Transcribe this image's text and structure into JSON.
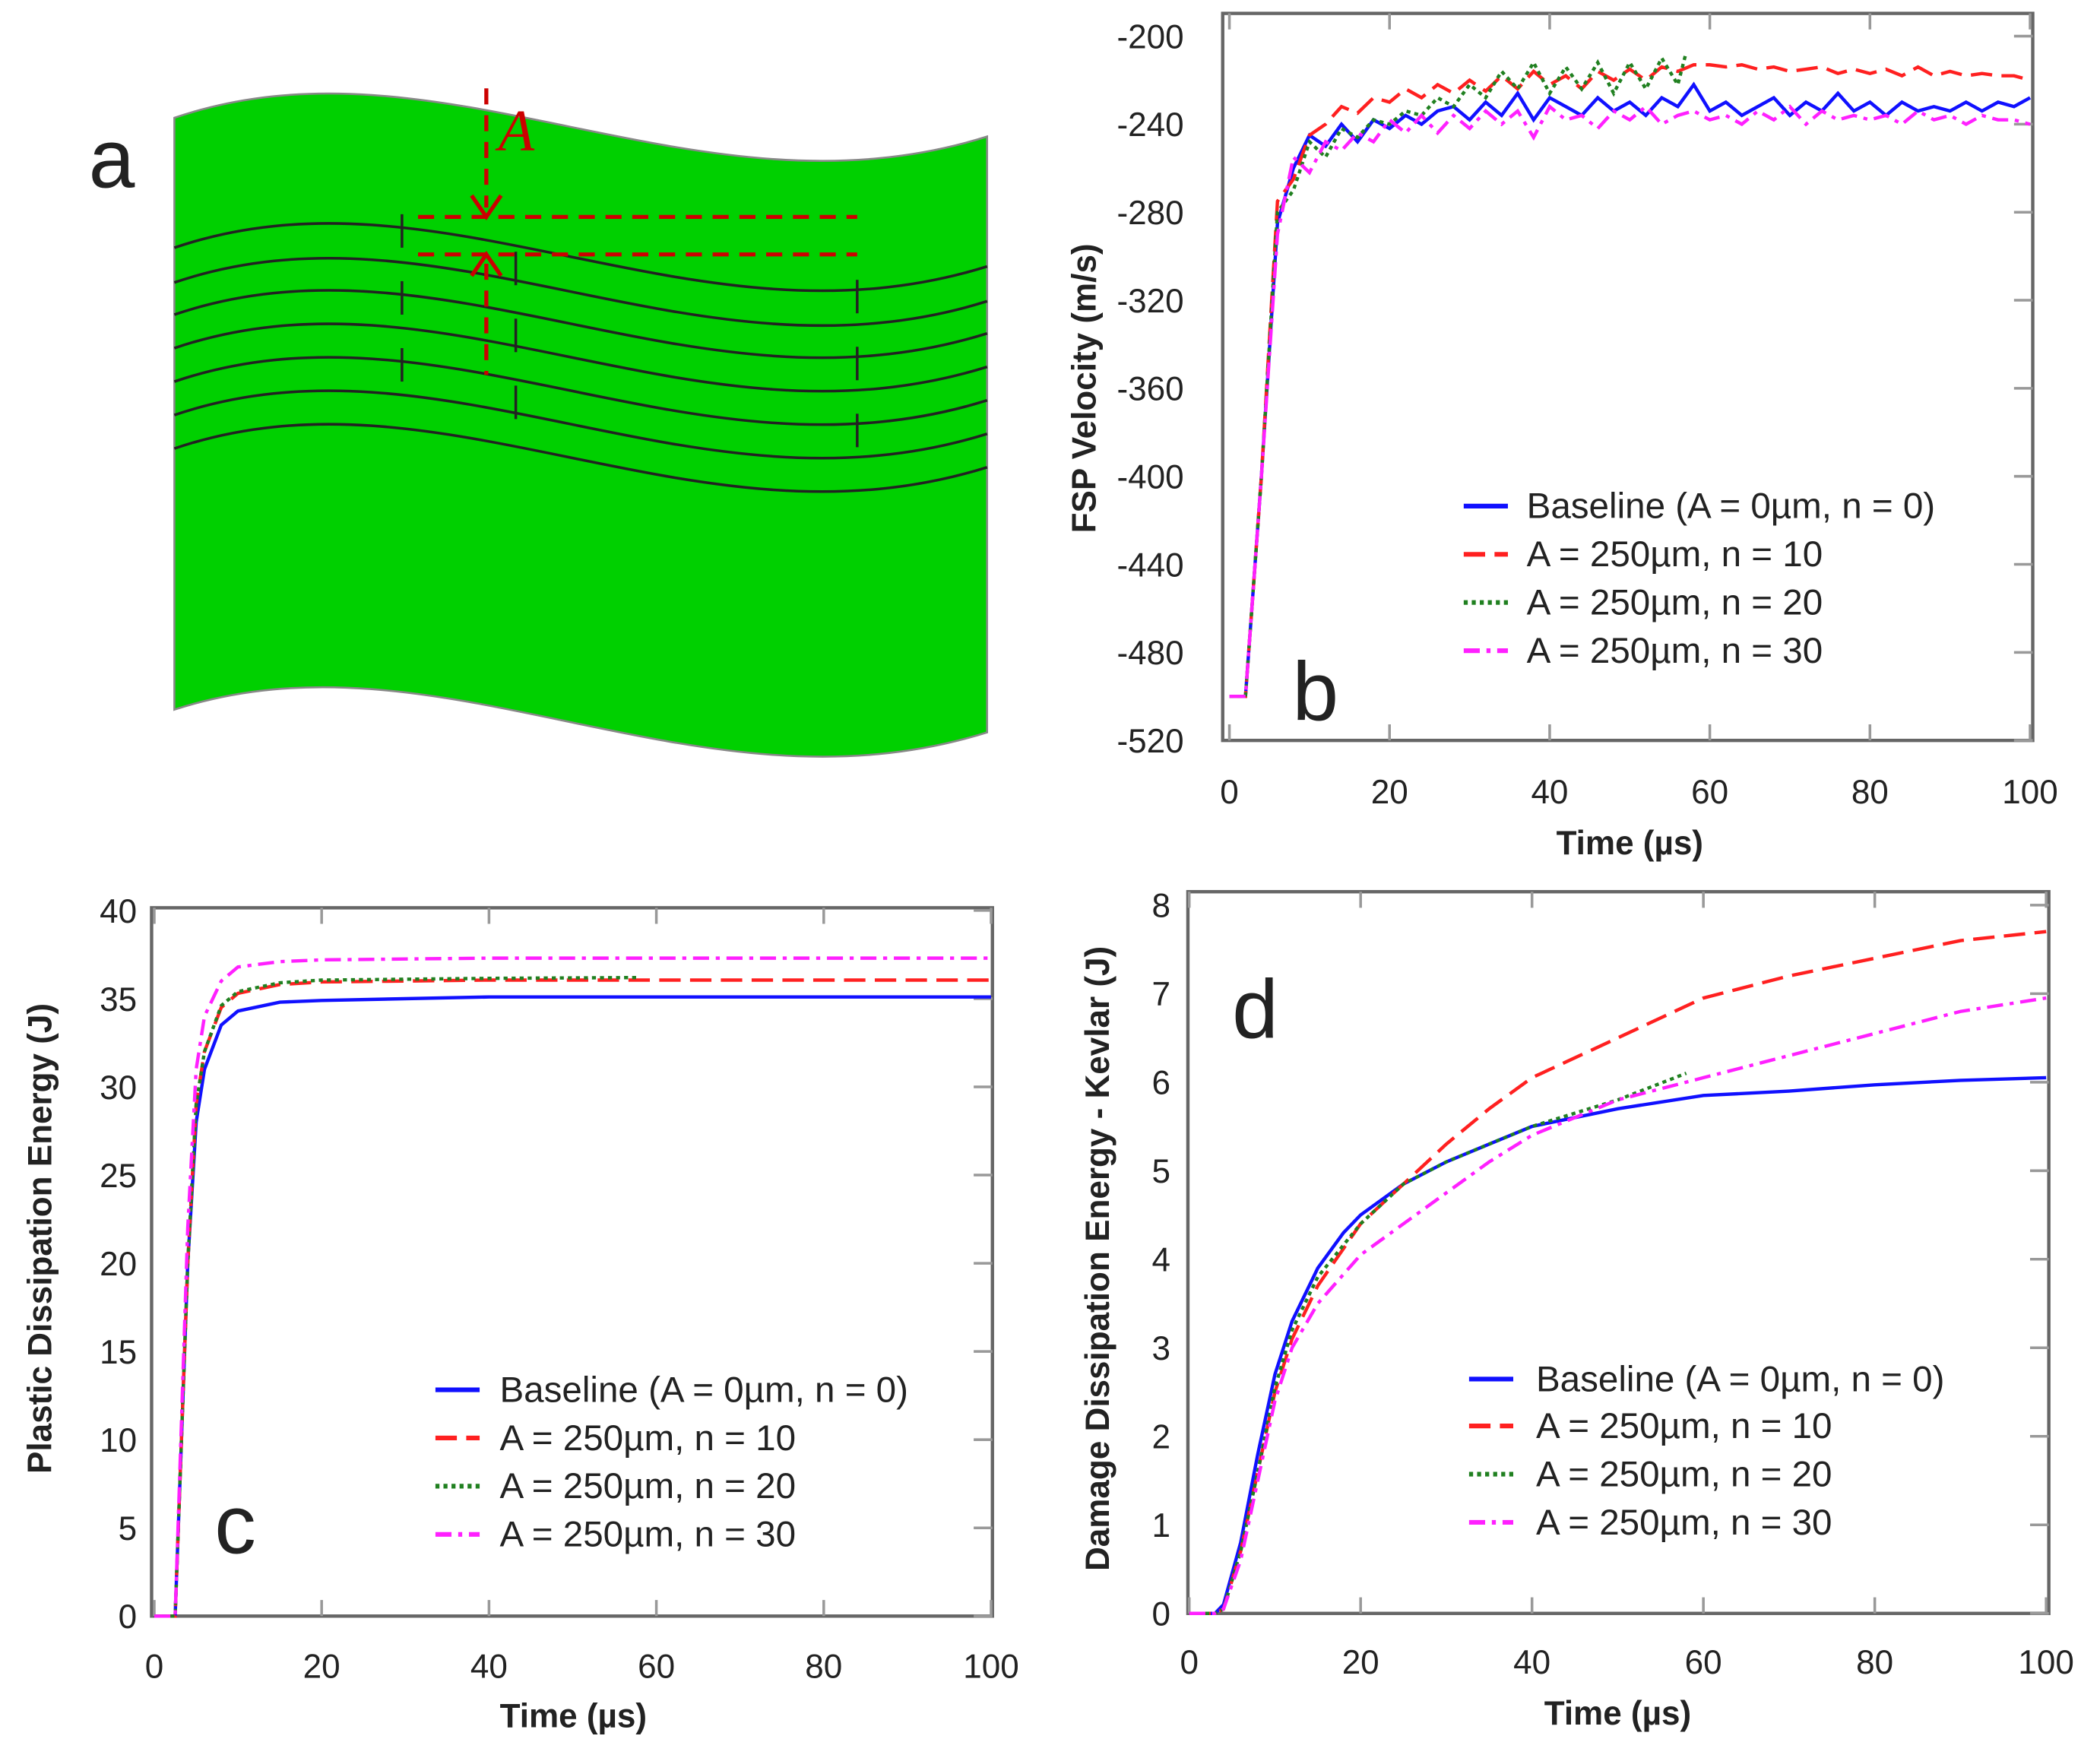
{
  "panel_a": {
    "label": "a",
    "amplitude_label": "A",
    "green": "#00d000",
    "annotation_color": "#cc0000"
  },
  "legend": [
    "Baseline (A = 0µm, n = 0)",
    "A = 250µm, n = 10",
    "A = 250µm, n = 20",
    "A = 250µm, n = 30"
  ],
  "series_style": [
    {
      "color": "#1010ff",
      "dash": "solid"
    },
    {
      "color": "#ff2020",
      "dash": "dashed"
    },
    {
      "color": "#208020",
      "dash": "dotted"
    },
    {
      "color": "#ff20ff",
      "dash": "dash-dot"
    }
  ],
  "chart_data": [
    {
      "panel": "b",
      "type": "line",
      "xlabel": "Time (µs)",
      "ylabel": "FSP Velocity (m/s)",
      "xlim": [
        0,
        100
      ],
      "ylim": [
        -520,
        -200
      ],
      "xticks": [
        0,
        20,
        40,
        60,
        80,
        100
      ],
      "yticks": [
        -520,
        -480,
        -440,
        -400,
        -360,
        -320,
        -280,
        -240,
        -200
      ],
      "legend_position": "bottom-right",
      "series": [
        {
          "name": "Baseline (A = 0µm, n = 0)",
          "x": [
            0,
            2,
            4,
            6,
            8,
            10,
            12,
            14,
            16,
            18,
            20,
            22,
            24,
            26,
            28,
            30,
            32,
            34,
            36,
            38,
            40,
            42,
            44,
            46,
            48,
            50,
            52,
            54,
            56,
            58,
            60,
            62,
            64,
            66,
            68,
            70,
            72,
            74,
            76,
            78,
            80,
            82,
            84,
            86,
            88,
            90,
            92,
            94,
            96,
            98,
            100
          ],
          "y": [
            -500,
            -500,
            -400,
            -285,
            -260,
            -245,
            -250,
            -240,
            -248,
            -238,
            -242,
            -236,
            -240,
            -234,
            -232,
            -238,
            -230,
            -236,
            -226,
            -238,
            -228,
            -232,
            -236,
            -228,
            -234,
            -230,
            -236,
            -228,
            -232,
            -222,
            -234,
            -230,
            -236,
            -232,
            -228,
            -236,
            -230,
            -234,
            -226,
            -234,
            -230,
            -236,
            -230,
            -234,
            -232,
            -234,
            -230,
            -234,
            -230,
            -232,
            -228
          ]
        },
        {
          "name": "A = 250µm, n = 10",
          "x": [
            0,
            2,
            4,
            6,
            8,
            10,
            12,
            14,
            16,
            18,
            20,
            22,
            24,
            26,
            28,
            30,
            32,
            34,
            36,
            38,
            40,
            42,
            44,
            46,
            48,
            50,
            52,
            54,
            56,
            58,
            60,
            62,
            64,
            66,
            68,
            70,
            72,
            74,
            76,
            78,
            80,
            82,
            84,
            86,
            88,
            90,
            92,
            94,
            96,
            98,
            100
          ],
          "y": [
            -500,
            -500,
            -400,
            -275,
            -265,
            -245,
            -240,
            -232,
            -235,
            -228,
            -230,
            -224,
            -228,
            -222,
            -226,
            -220,
            -225,
            -218,
            -224,
            -216,
            -222,
            -218,
            -224,
            -216,
            -220,
            -215,
            -220,
            -214,
            -216,
            -213,
            -213,
            -214,
            -213,
            -215,
            -214,
            -216,
            -215,
            -214,
            -217,
            -215,
            -217,
            -215,
            -218,
            -214,
            -218,
            -216,
            -218,
            -217,
            -218,
            -218,
            -220
          ]
        },
        {
          "name": "A = 250µm, n = 20",
          "x": [
            0,
            2,
            4,
            6,
            8,
            10,
            12,
            14,
            16,
            18,
            20,
            22,
            24,
            26,
            28,
            30,
            32,
            34,
            36,
            38,
            40,
            42,
            44,
            46,
            48,
            50,
            52,
            54,
            56,
            57
          ],
          "y": [
            -500,
            -500,
            -400,
            -280,
            -270,
            -248,
            -255,
            -242,
            -246,
            -238,
            -240,
            -234,
            -236,
            -228,
            -232,
            -222,
            -228,
            -216,
            -224,
            -212,
            -226,
            -214,
            -224,
            -212,
            -226,
            -212,
            -224,
            -210,
            -222,
            -208
          ]
        },
        {
          "name": "A = 250µm, n = 30",
          "x": [
            0,
            2,
            4,
            6,
            8,
            10,
            12,
            14,
            16,
            18,
            20,
            22,
            24,
            26,
            28,
            30,
            32,
            34,
            36,
            38,
            40,
            42,
            44,
            46,
            48,
            50,
            52,
            54,
            56,
            58,
            60,
            62,
            64,
            66,
            68,
            70,
            72,
            74,
            76,
            78,
            80,
            82,
            84,
            86,
            88,
            90,
            92,
            94,
            96,
            98,
            100
          ],
          "y": [
            -500,
            -500,
            -400,
            -290,
            -255,
            -262,
            -248,
            -252,
            -244,
            -248,
            -238,
            -244,
            -236,
            -244,
            -236,
            -242,
            -234,
            -240,
            -234,
            -246,
            -232,
            -238,
            -236,
            -242,
            -234,
            -238,
            -232,
            -240,
            -236,
            -234,
            -238,
            -236,
            -240,
            -234,
            -238,
            -232,
            -240,
            -234,
            -238,
            -236,
            -238,
            -236,
            -240,
            -234,
            -238,
            -236,
            -240,
            -236,
            -238,
            -238,
            -240
          ]
        }
      ]
    },
    {
      "panel": "c",
      "type": "line",
      "xlabel": "Time (µs)",
      "ylabel": "Plastic Dissipation Energy (J)",
      "xlim": [
        0,
        100
      ],
      "ylim": [
        0,
        40
      ],
      "xticks": [
        0,
        20,
        40,
        60,
        80,
        100
      ],
      "yticks": [
        0,
        5,
        10,
        15,
        20,
        25,
        30,
        35,
        40
      ],
      "legend_position": "bottom-right",
      "series": [
        {
          "name": "Baseline (A = 0µm, n = 0)",
          "x": [
            0,
            2.5,
            4,
            5,
            6,
            8,
            10,
            15,
            20,
            40,
            100
          ],
          "y": [
            0,
            0,
            20,
            28,
            31,
            33.5,
            34.3,
            34.8,
            34.9,
            35.1,
            35.1
          ]
        },
        {
          "name": "A = 250µm, n = 10",
          "x": [
            0,
            2.5,
            4,
            5,
            6,
            8,
            10,
            15,
            20,
            40,
            100
          ],
          "y": [
            0,
            0,
            20,
            29,
            32,
            34.5,
            35.3,
            35.8,
            35.95,
            36.05,
            36.05
          ]
        },
        {
          "name": "A = 250µm, n = 20",
          "x": [
            0,
            2.5,
            4,
            5,
            6,
            8,
            10,
            15,
            20,
            40,
            58
          ],
          "y": [
            0,
            0,
            20,
            29,
            32,
            34.6,
            35.4,
            35.9,
            36.05,
            36.15,
            36.2
          ]
        },
        {
          "name": "A = 250µm, n = 30",
          "x": [
            0,
            2.5,
            4,
            5,
            6,
            8,
            10,
            15,
            20,
            40,
            100
          ],
          "y": [
            0,
            0,
            22,
            31,
            34,
            36,
            36.8,
            37.1,
            37.2,
            37.3,
            37.3
          ]
        }
      ]
    },
    {
      "panel": "d",
      "type": "line",
      "xlabel": "Time (µs)",
      "ylabel": "Damage Dissipation Energy - Kevlar (J)",
      "xlim": [
        0,
        100
      ],
      "ylim": [
        0,
        8
      ],
      "xticks": [
        0,
        20,
        40,
        60,
        80,
        100
      ],
      "yticks": [
        0,
        1,
        2,
        3,
        4,
        5,
        6,
        7,
        8
      ],
      "legend_position": "bottom-right",
      "series": [
        {
          "name": "Baseline (A = 0µm, n = 0)",
          "x": [
            0,
            3,
            4,
            6,
            8,
            10,
            12,
            15,
            18,
            20,
            25,
            30,
            35,
            40,
            50,
            60,
            70,
            80,
            90,
            100
          ],
          "y": [
            0,
            0,
            0.1,
            0.8,
            1.8,
            2.7,
            3.3,
            3.9,
            4.3,
            4.5,
            4.85,
            5.1,
            5.3,
            5.5,
            5.7,
            5.85,
            5.9,
            5.97,
            6.02,
            6.05
          ]
        },
        {
          "name": "A = 250µm, n = 10",
          "x": [
            0,
            3,
            4,
            6,
            8,
            10,
            12,
            15,
            20,
            25,
            30,
            35,
            40,
            50,
            60,
            70,
            80,
            90,
            100
          ],
          "y": [
            0,
            0,
            0.05,
            0.7,
            1.6,
            2.5,
            3.1,
            3.7,
            4.4,
            4.85,
            5.3,
            5.7,
            6.05,
            6.5,
            6.95,
            7.2,
            7.4,
            7.6,
            7.7
          ]
        },
        {
          "name": "A = 250µm, n = 20",
          "x": [
            0,
            3,
            4,
            6,
            8,
            10,
            12,
            15,
            20,
            25,
            30,
            35,
            40,
            50,
            58
          ],
          "y": [
            0,
            0,
            0.05,
            0.7,
            1.6,
            2.55,
            3.2,
            3.8,
            4.4,
            4.85,
            5.1,
            5.3,
            5.5,
            5.8,
            6.1
          ]
        },
        {
          "name": "A = 250µm, n = 30",
          "x": [
            0,
            3,
            4,
            6,
            8,
            10,
            12,
            15,
            20,
            25,
            30,
            35,
            40,
            50,
            60,
            70,
            80,
            90,
            100
          ],
          "y": [
            0,
            0,
            0.05,
            0.6,
            1.5,
            2.4,
            3.0,
            3.5,
            4.05,
            4.4,
            4.75,
            5.1,
            5.4,
            5.8,
            6.05,
            6.3,
            6.55,
            6.8,
            6.95
          ]
        }
      ]
    }
  ]
}
